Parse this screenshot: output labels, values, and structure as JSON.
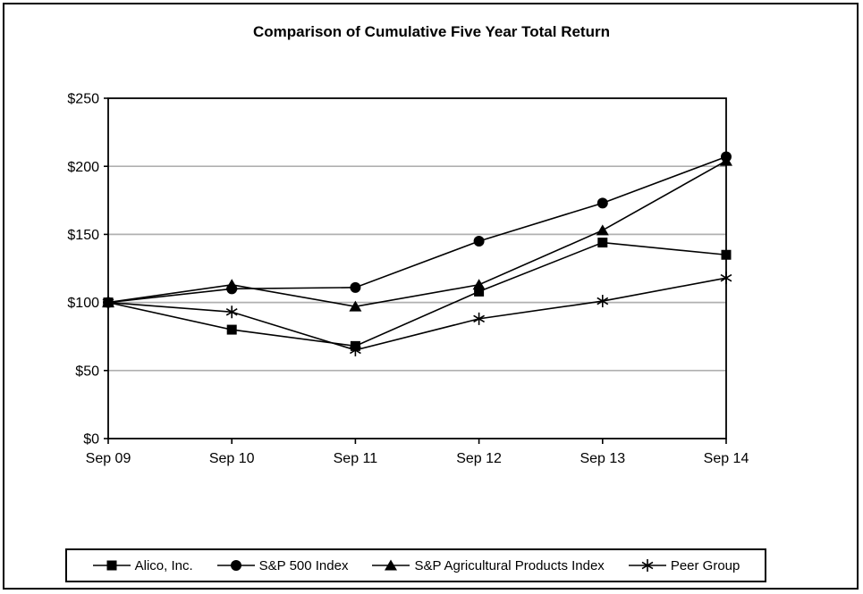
{
  "figure": {
    "title": "Comparison of Cumulative Five Year Total Return"
  },
  "chart_data": {
    "type": "line",
    "title": "Comparison of Cumulative Five Year Total Return",
    "x_categories": [
      "Sep 09",
      "Sep 10",
      "Sep 11",
      "Sep 12",
      "Sep 13",
      "Sep 14"
    ],
    "y_ticks": [
      0,
      50,
      100,
      150,
      200,
      250
    ],
    "y_tick_labels": [
      "$0",
      "$50",
      "$100",
      "$150",
      "$200",
      "$250"
    ],
    "ylim": [
      0,
      250
    ],
    "grid": "horizontal",
    "gridline_color": "#b0b0b0",
    "line_color": "#000000",
    "background_color": "#ffffff",
    "legend_position": "bottom",
    "series": [
      {
        "name": "Alico, Inc.",
        "marker": "square",
        "values": [
          100,
          80,
          68,
          108,
          144,
          135
        ]
      },
      {
        "name": "S&P 500 Index",
        "marker": "circle",
        "values": [
          100,
          110,
          111,
          145,
          173,
          207
        ]
      },
      {
        "name": "S&P Agricultural Products Index",
        "marker": "triangle",
        "values": [
          100,
          113,
          97,
          113,
          153,
          204
        ]
      },
      {
        "name": "Peer Group",
        "marker": "asterisk",
        "values": [
          100,
          93,
          65,
          88,
          101,
          118
        ]
      }
    ]
  }
}
